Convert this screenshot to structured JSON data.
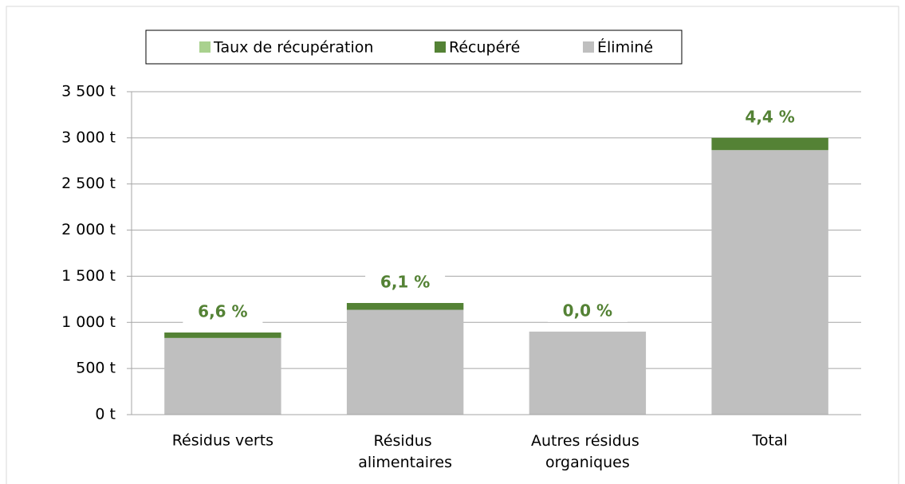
{
  "chart_data": {
    "type": "stacked_bar",
    "categories": [
      "Résidus verts",
      "Résidus alimentaires",
      "Autres résidus organiques",
      "Total"
    ],
    "series": [
      {
        "name": "Taux de récupération",
        "color": "#a9d18e",
        "values": [
          6.6,
          6.1,
          0.0,
          4.4
        ],
        "value_labels": [
          "6,6 %",
          "6,1 %",
          "0,0 %",
          "4,4 %"
        ],
        "label_color": "#548235"
      },
      {
        "name": "Récupéré",
        "color": "#548235",
        "values": [
          59,
          74,
          0,
          133
        ]
      },
      {
        "name": "Éliminé",
        "color": "#bfbfbf",
        "values": [
          831,
          1136,
          900,
          2867
        ]
      }
    ],
    "ylim": [
      0,
      3500
    ],
    "yticks": [
      {
        "value": 0,
        "label": "0 t"
      },
      {
        "value": 500,
        "label": "500 t"
      },
      {
        "value": 1000,
        "label": "1 000 t"
      },
      {
        "value": 1500,
        "label": "1 500 t"
      },
      {
        "value": 2000,
        "label": "2 000 t"
      },
      {
        "value": 2500,
        "label": "2 500 t"
      },
      {
        "value": 3000,
        "label": "3 000 t"
      },
      {
        "value": 3500,
        "label": "3 500 t"
      }
    ],
    "grid": true,
    "legend": "top"
  }
}
